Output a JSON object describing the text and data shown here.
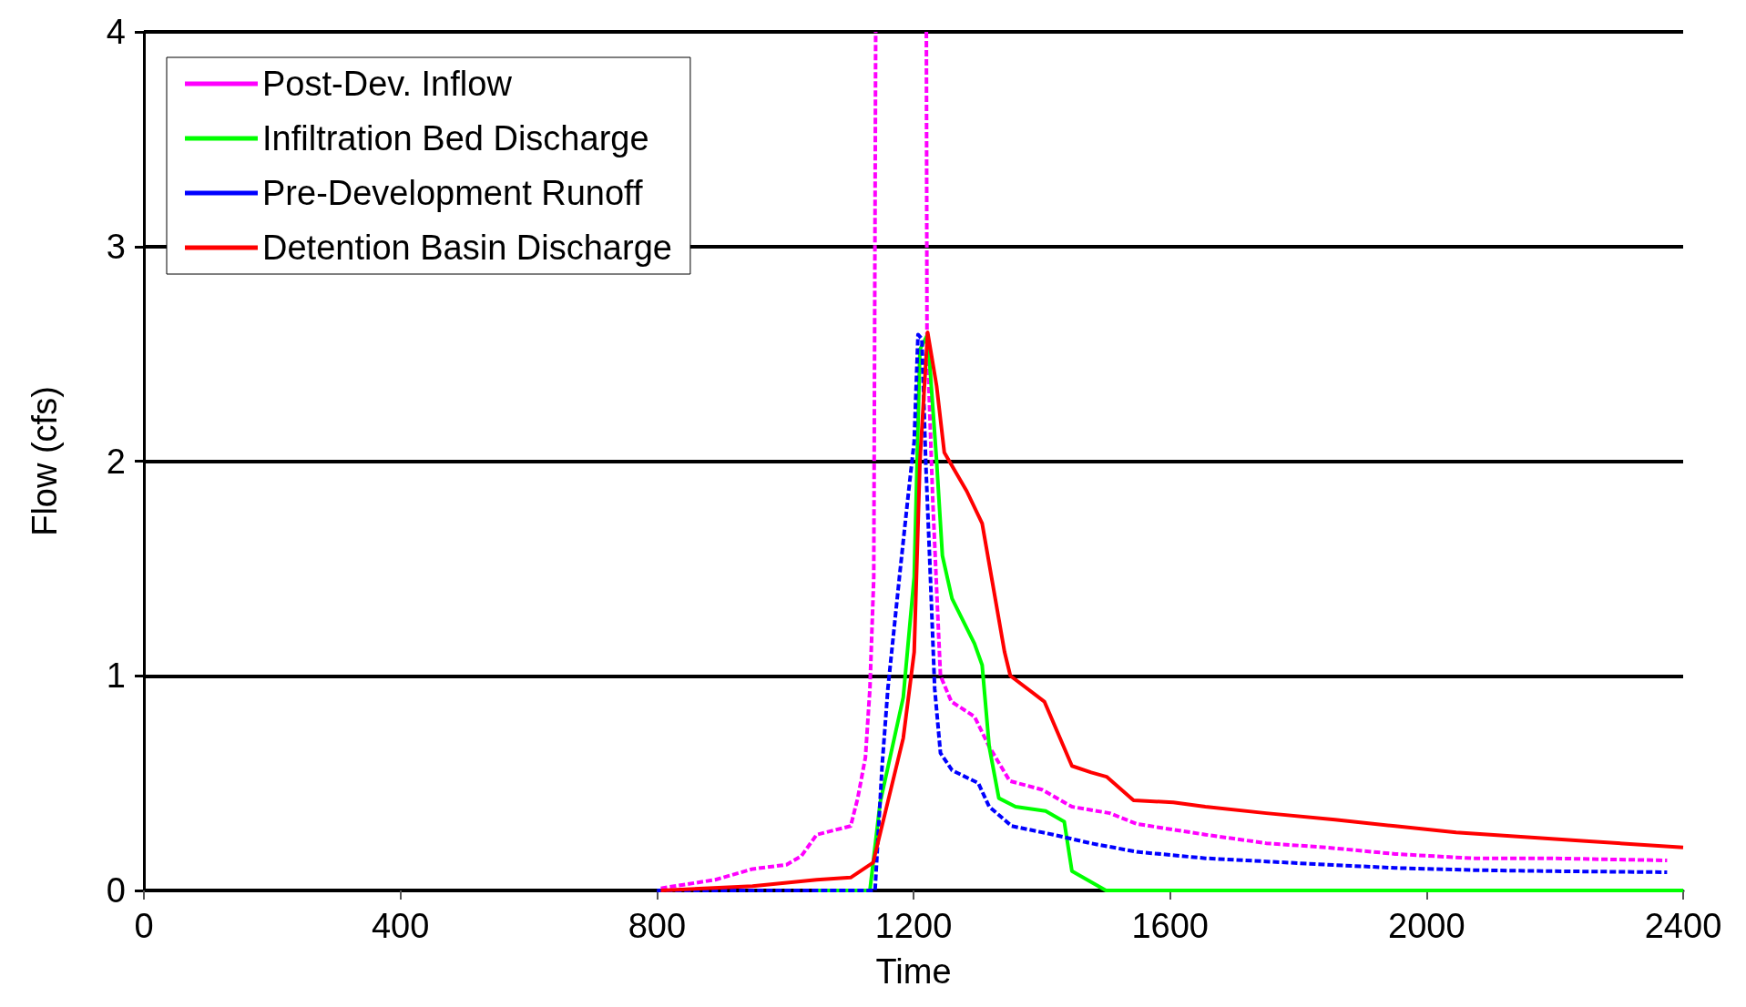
{
  "chart_data": {
    "type": "line",
    "xlabel": "Time",
    "ylabel": "Flow (cfs)",
    "xlim": [
      0,
      2400
    ],
    "xticks": [
      0,
      400,
      800,
      1200,
      1600,
      2000,
      2400
    ],
    "ylim": [
      0,
      4
    ],
    "yticks": [
      0,
      1,
      2,
      3,
      4
    ],
    "grid": "y",
    "legend": "top left",
    "marker": "none",
    "series": [
      {
        "name": "Post-Dev. Inflow",
        "color": "#ff00ff",
        "line_style": "dashed",
        "x": [
          806,
          891,
          949,
          1002,
          1025,
          1049,
          1102,
          1113,
          1125,
          1132,
          1138,
          1141,
          1180,
          1220,
          1221,
          1230,
          1239,
          1242,
          1259,
          1295,
          1318,
          1350,
          1400,
          1447,
          1506,
          1548,
          1655,
          1750,
          1845,
          1951,
          2070,
          2188,
          2375
        ],
        "values": [
          0.01,
          0.05,
          0.1,
          0.12,
          0.16,
          0.26,
          0.3,
          0.43,
          0.62,
          0.94,
          1.46,
          4,
          null,
          4,
          2.6,
          1.82,
          1.2,
          1.0,
          0.88,
          0.81,
          0.67,
          0.51,
          0.47,
          0.39,
          0.36,
          0.31,
          0.26,
          0.22,
          0.2,
          0.17,
          0.15,
          0.15,
          0.14
        ]
      },
      {
        "name": "Infiltration Bed Discharge",
        "color": "#00ff00",
        "line_style": "solid",
        "x": [
          1050,
          1132,
          1148,
          1184,
          1201,
          1210,
          1222,
          1236,
          1245,
          1260,
          1295,
          1307,
          1318,
          1333,
          1359,
          1406,
          1435,
          1447,
          1500,
          2400
        ],
        "values": [
          0,
          0,
          0.41,
          0.9,
          1.46,
          2.52,
          2.59,
          2.0,
          1.56,
          1.36,
          1.15,
          1.05,
          0.67,
          0.43,
          0.39,
          0.37,
          0.32,
          0.09,
          0,
          0
        ]
      },
      {
        "name": "Pre-Development Runoff",
        "color": "#0000ff",
        "line_style": "dashed",
        "x": [
          800,
          1140,
          1143,
          1151,
          1160,
          1178,
          1192,
          1201,
          1207,
          1213,
          1219,
          1225,
          1233,
          1242,
          1260,
          1301,
          1318,
          1353,
          1418,
          1476,
          1548,
          1655,
          1750,
          1845,
          1951,
          2070,
          2188,
          2375
        ],
        "values": [
          0,
          0,
          0.16,
          0.58,
          0.94,
          1.46,
          1.85,
          2.09,
          2.59,
          2.57,
          2.0,
          1.56,
          0.94,
          0.64,
          0.56,
          0.5,
          0.39,
          0.3,
          0.26,
          0.22,
          0.18,
          0.15,
          0.135,
          0.12,
          0.105,
          0.095,
          0.09,
          0.085
        ]
      },
      {
        "name": "Detention Basin Discharge",
        "color": "#ff0000",
        "line_style": "solid",
        "x": [
          806,
          949,
          1049,
          1102,
          1137,
          1184,
          1201,
          1210,
          1222,
          1236,
          1248,
          1283,
          1307,
          1342,
          1351,
          1404,
          1447,
          1477,
          1501,
          1543,
          1605,
          1655,
          1750,
          1857,
          1951,
          2046,
          2147,
          2248,
          2400
        ],
        "values": [
          0,
          0.02,
          0.05,
          0.06,
          0.13,
          0.71,
          1.11,
          2.0,
          2.6,
          2.35,
          2.04,
          1.86,
          1.71,
          1.11,
          1.0,
          0.88,
          0.58,
          0.55,
          0.53,
          0.42,
          0.41,
          0.39,
          0.36,
          0.33,
          0.3,
          0.27,
          0.25,
          0.23,
          0.2
        ]
      }
    ]
  }
}
